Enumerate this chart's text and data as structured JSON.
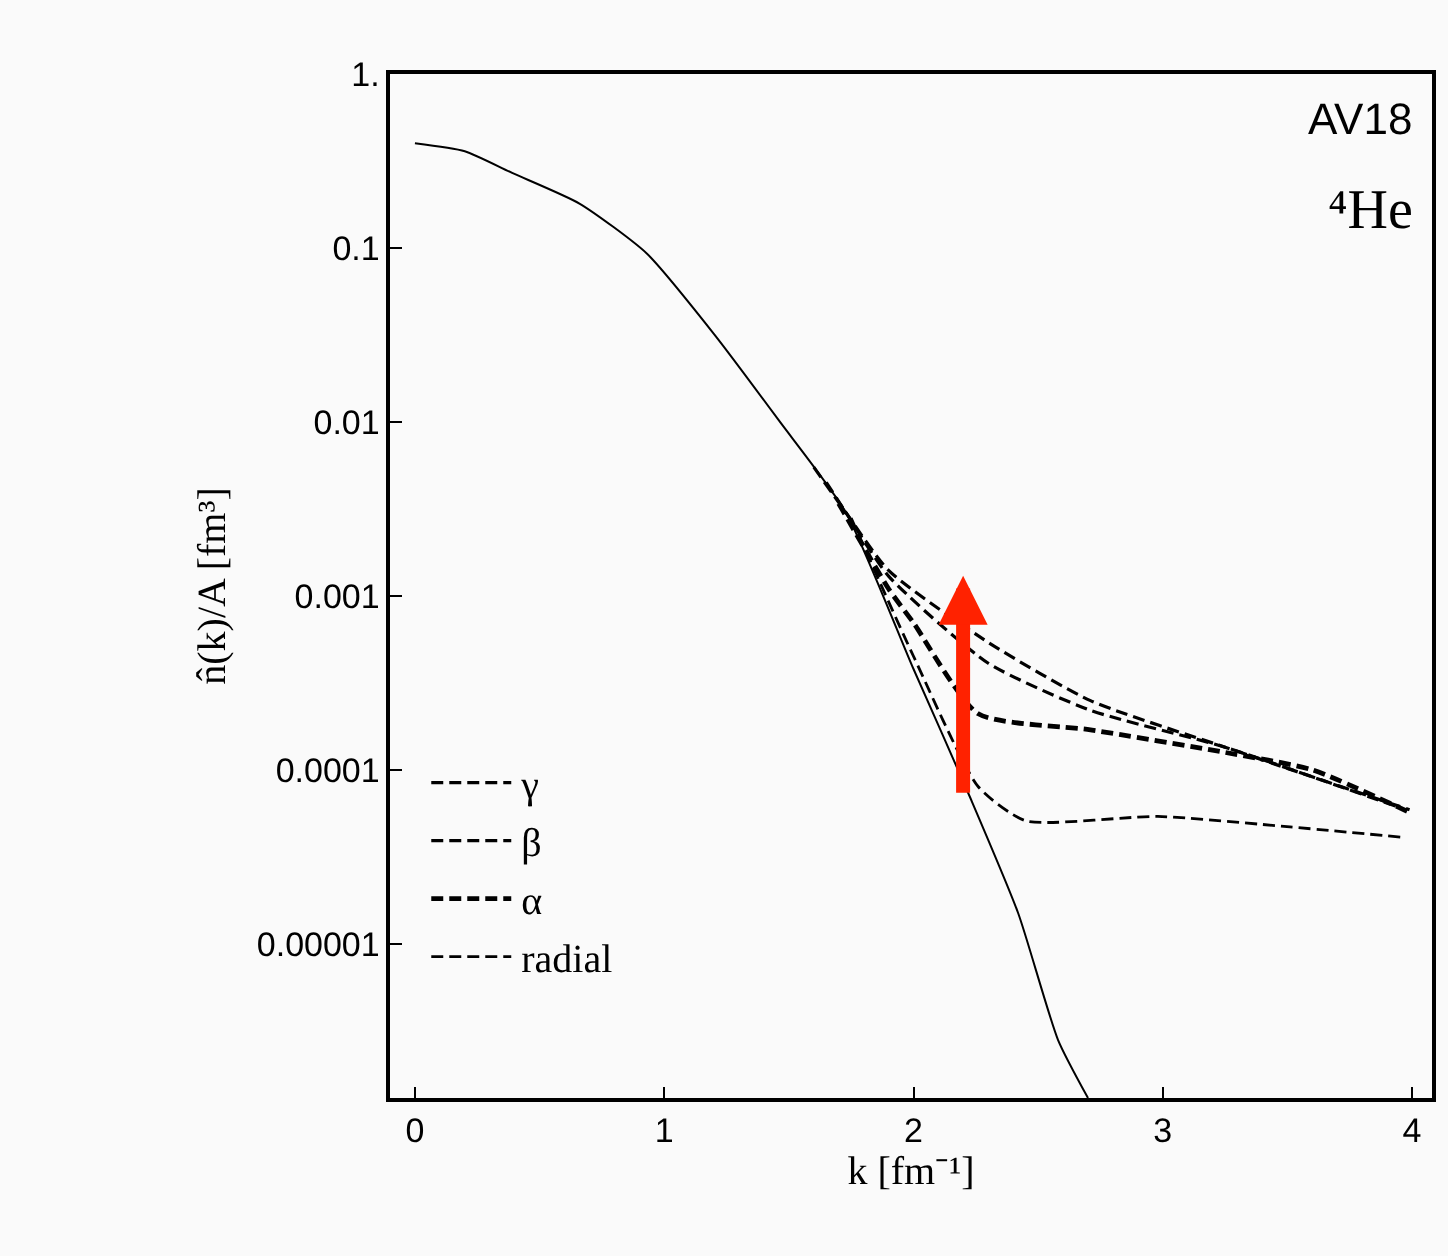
{
  "chart_data": {
    "type": "line",
    "xlabel": "k [fm⁻¹]",
    "ylabel": "n̂(k)/A [fm³]",
    "log": "y",
    "legend": "bottom left",
    "xlim": [
      -0.1,
      4.08
    ],
    "xticks": [
      0,
      1,
      2,
      3,
      4
    ],
    "ylim": [
      1.3e-06,
      1
    ],
    "yticks": [
      {
        "value": 1,
        "label": "1."
      },
      0.1,
      0.01,
      0.001,
      0.0001,
      {
        "value": 1e-05,
        "label": "0.00001"
      }
    ],
    "annotations": [
      "AV18",
      "⁴He"
    ],
    "series": [
      {
        "name": "γ",
        "color": "#000000",
        "line_style": "dashed",
        "x": [
          1.6,
          1.73,
          1.9,
          2.3,
          2.71,
          3.25,
          3.99
        ],
        "values": [
          0.0055,
          0.003,
          0.0014,
          0.00054,
          0.00025,
          0.000135,
          5.9e-05
        ]
      },
      {
        "name": "β",
        "color": "#000000",
        "line_style": "dashed",
        "x": [
          1.65,
          1.73,
          1.9,
          2.3,
          2.71,
          3.25,
          3.96
        ],
        "values": [
          0.0045,
          0.003,
          0.0013,
          0.00041,
          0.00022,
          0.000135,
          6e-05
        ]
      },
      {
        "name": "α",
        "color": "#000000",
        "line_style": "dashed",
        "x": [
          1.7,
          1.9,
          2.0,
          2.26,
          2.71,
          3.25,
          3.6,
          3.99
        ],
        "values": [
          0.0034,
          0.0011,
          0.0007,
          0.00021,
          0.00017,
          0.000126,
          0.0001,
          5.7e-05
        ]
      },
      {
        "name": "radial",
        "color": "#000000",
        "line_style": "dashed",
        "x": [
          1.75,
          2.0,
          2.26,
          2.45,
          2.98,
          3.51,
          3.96
        ],
        "values": [
          0.0028,
          0.00045,
          8e-05,
          5.1e-05,
          5.4e-05,
          4.7e-05,
          4.1e-05
        ]
      },
      {
        "color": "#000000",
        "line_style": "solid",
        "x": [
          0,
          0.2,
          0.39,
          0.66,
          0.93,
          1.2,
          1.46,
          1.73,
          2.0,
          2.23,
          2.42,
          2.58,
          2.7
        ],
        "values": [
          0.4,
          0.36,
          0.27,
          0.18,
          0.093,
          0.032,
          0.0102,
          0.003,
          0.00038,
          6.8e-05,
          1.5e-05,
          2.8e-06,
          1.3e-06
        ]
      }
    ]
  }
}
